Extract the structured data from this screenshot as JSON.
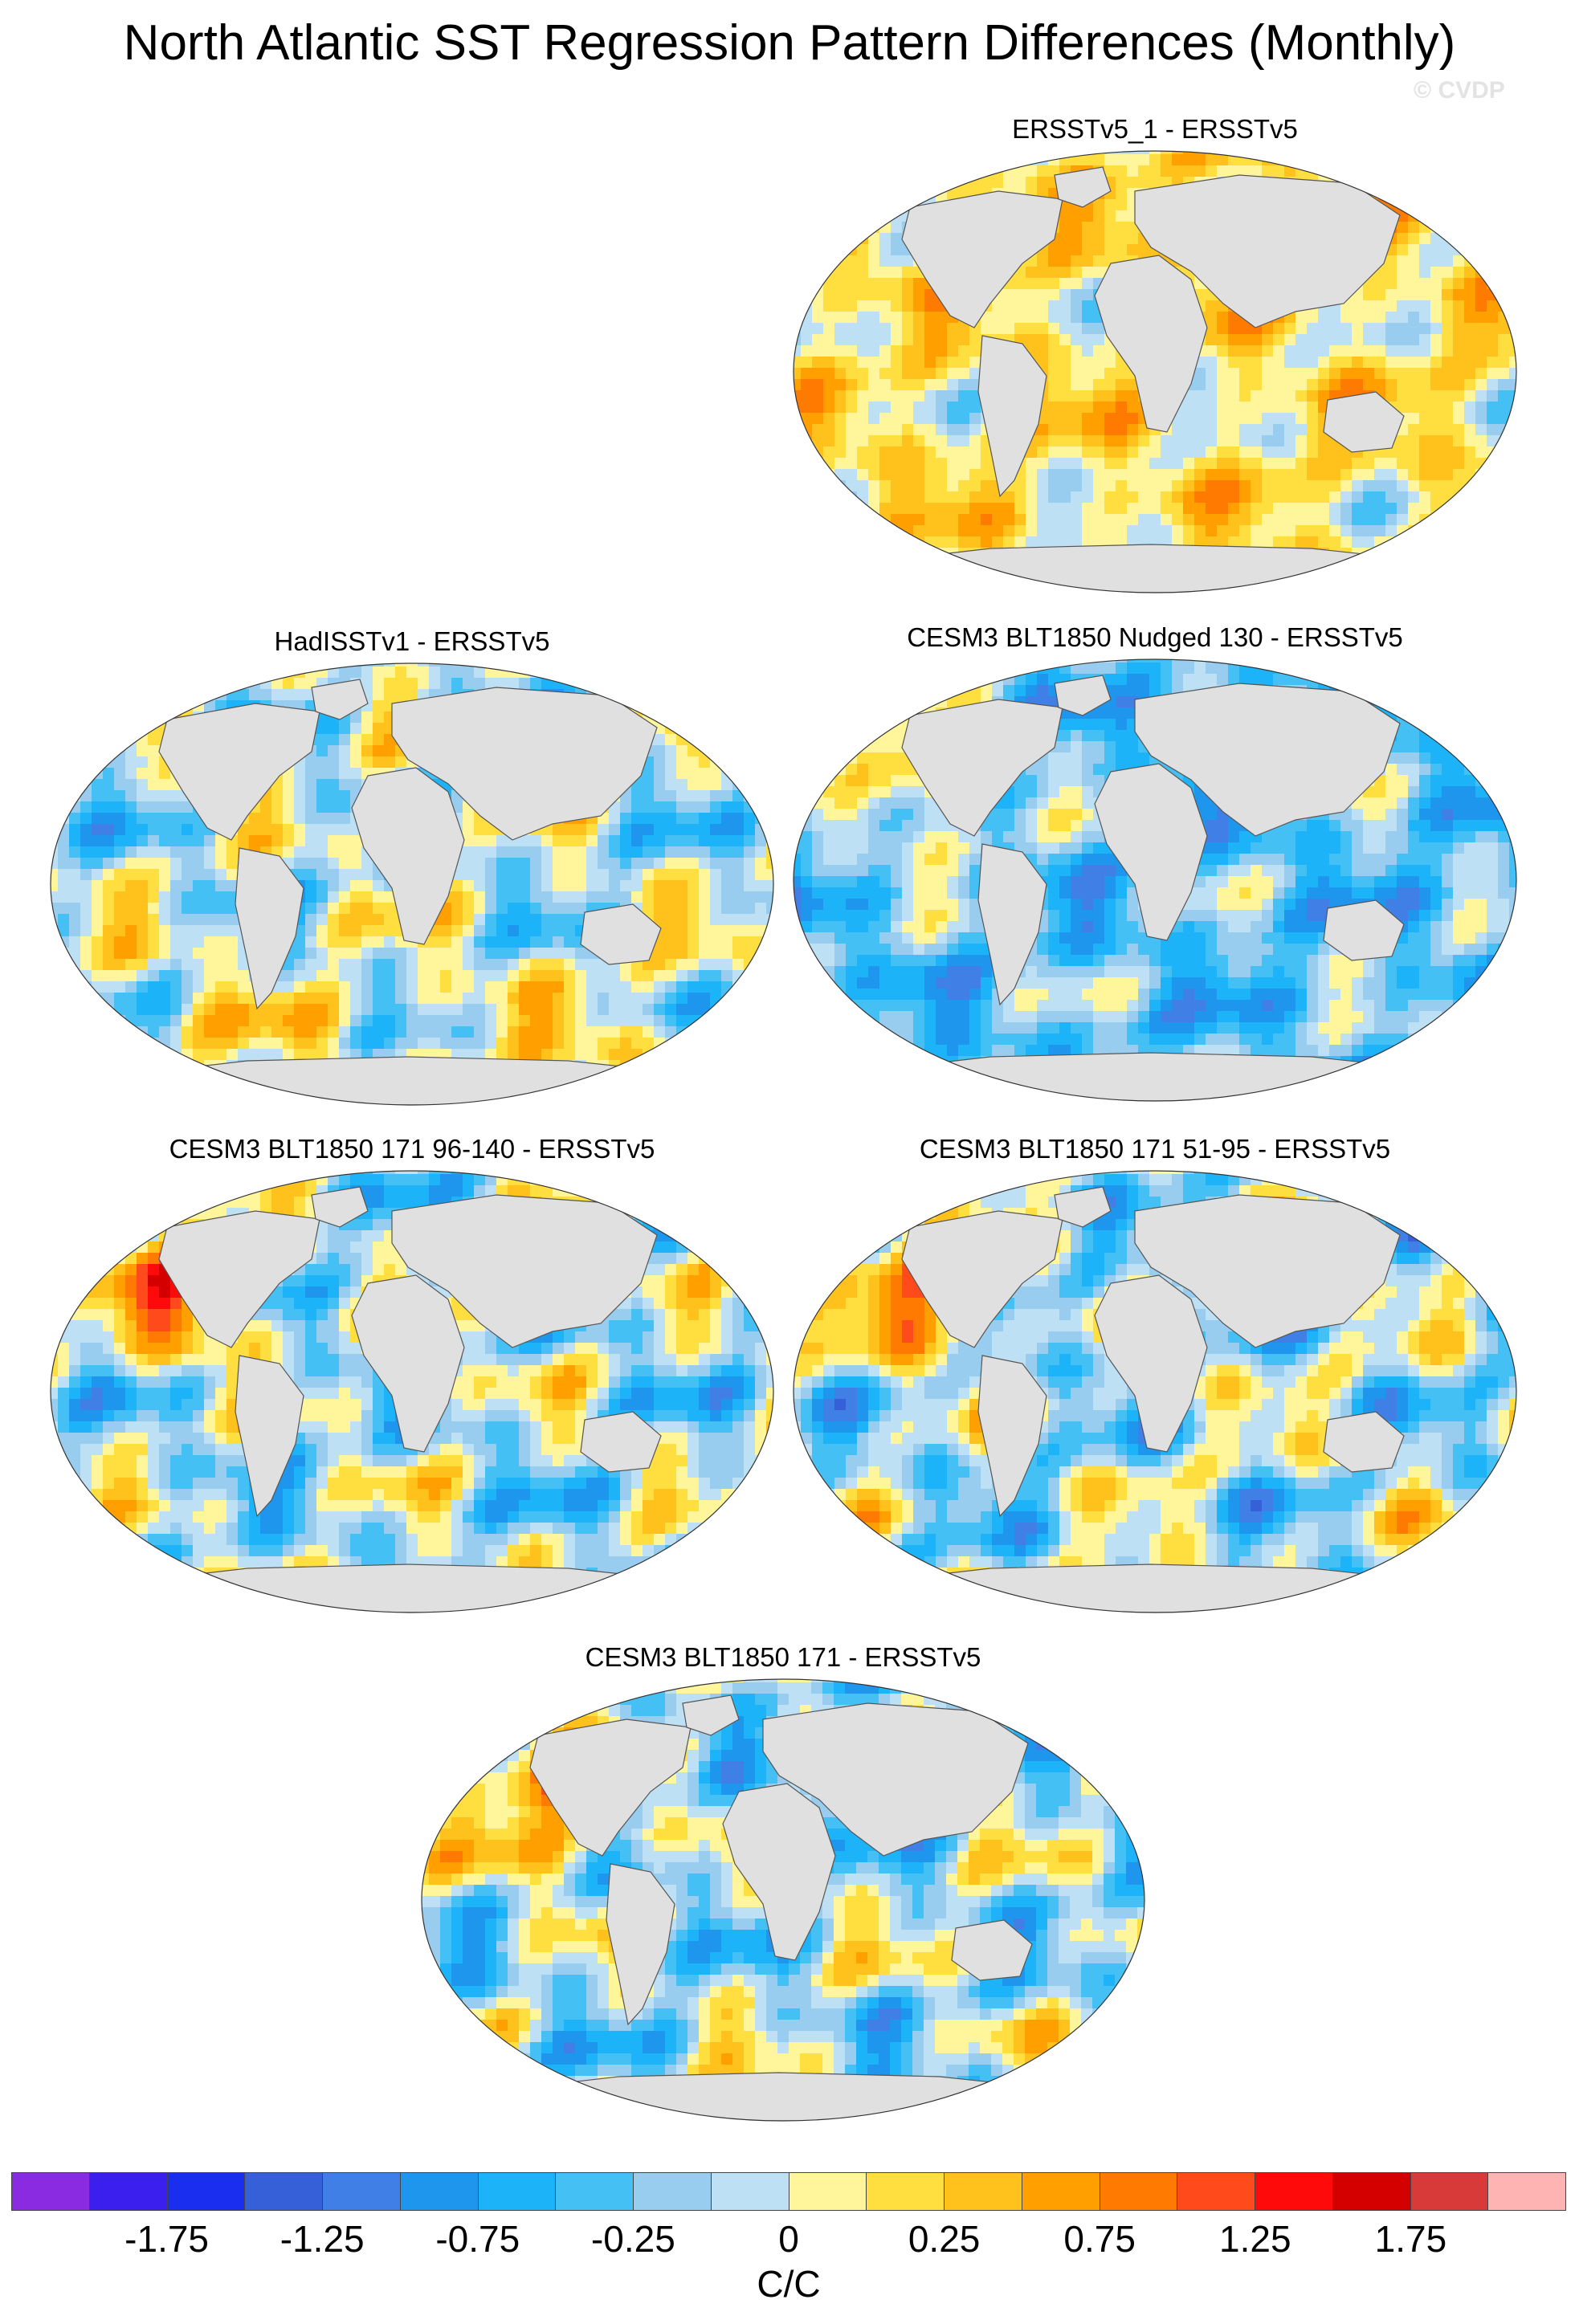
{
  "figure": {
    "title": "North Atlantic SST Regression Pattern Differences (Monthly)",
    "watermark": "© CVDP"
  },
  "panels": [
    {
      "label": "ERSSTv5_1 - ERSSTv5",
      "pattern": "warm-dominant"
    },
    {
      "label": "HadISSTv1 - ERSSTv5",
      "pattern": "mixed-warm-south"
    },
    {
      "label": "CESM3 BLT1850 Nudged 130 - ERSSTv5",
      "pattern": "cool-dominant"
    },
    {
      "label": "CESM3 BLT1850 171 96-140 - ERSSTv5",
      "pattern": "mixed"
    },
    {
      "label": "CESM3 BLT1850 171 51-95 - ERSSTv5",
      "pattern": "mixed"
    },
    {
      "label": "CESM3 BLT1850 171 - ERSSTv5",
      "pattern": "mixed"
    }
  ],
  "colorbar": {
    "units": "C/C",
    "colors": [
      "#8a2be2",
      "#3a1fef",
      "#1a2ef0",
      "#3660d8",
      "#3f7fe6",
      "#1e96ee",
      "#1cb3f8",
      "#45c0f5",
      "#99cdef",
      "#bde0f5",
      "#fff59a",
      "#ffde40",
      "#ffc21c",
      "#ffa000",
      "#ff7a00",
      "#ff4a1c",
      "#ff0a0a",
      "#d40000",
      "#d83a3a",
      "#ffb4b4"
    ],
    "tick_labels": [
      "-1.75",
      "-1.25",
      "-0.75",
      "-0.25",
      "0",
      "0.25",
      "0.75",
      "1.25",
      "1.75"
    ]
  }
}
